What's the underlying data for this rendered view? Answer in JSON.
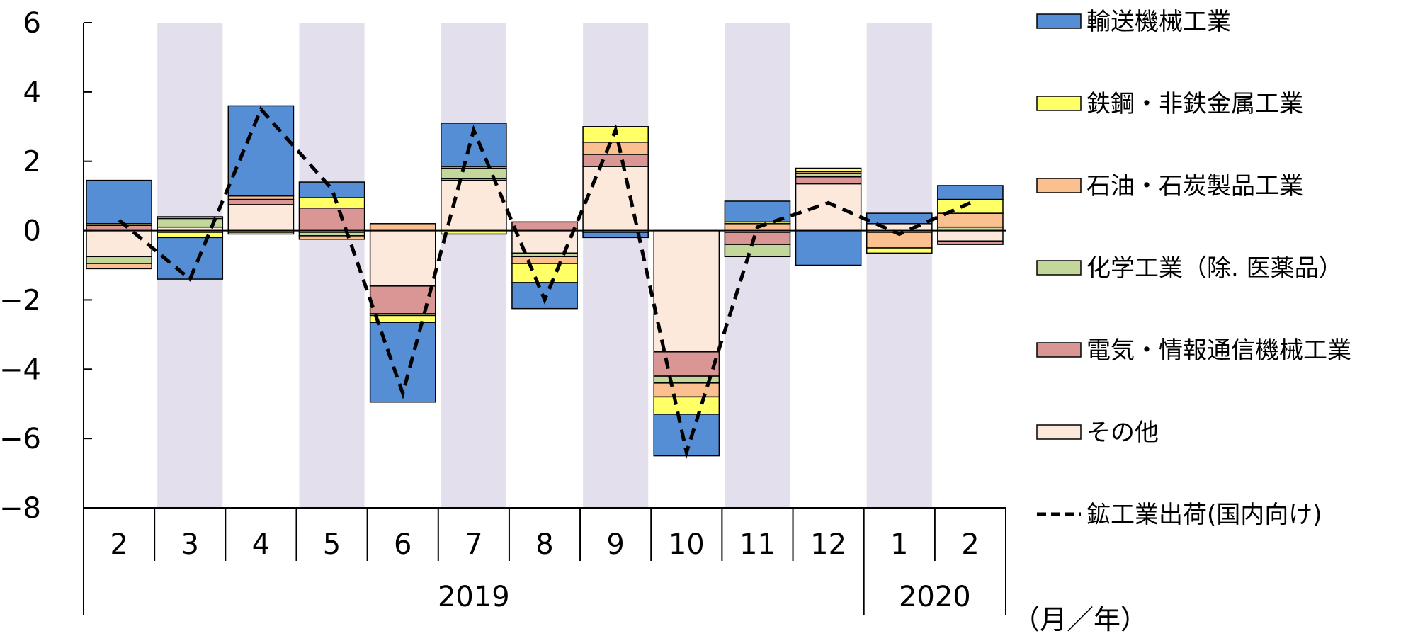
{
  "chart_data": {
    "type": "bar",
    "stacked": true,
    "categories": [
      "2",
      "3",
      "4",
      "5",
      "6",
      "7",
      "8",
      "9",
      "10",
      "11",
      "12",
      "1",
      "2"
    ],
    "years": [
      {
        "label": "2019",
        "from": 0,
        "to": 10
      },
      {
        "label": "2020",
        "from": 11,
        "to": 12
      }
    ],
    "shaded_categories": [
      1,
      3,
      5,
      7,
      9,
      11
    ],
    "ylim": [
      -8,
      6
    ],
    "yticks": [
      6,
      4,
      2,
      0,
      -2,
      -4,
      -6,
      -8
    ],
    "ytick_labels": [
      "6",
      "4",
      "2",
      "0",
      "−2",
      "−4",
      "−6",
      "−8"
    ],
    "unit_label": "（月／年）",
    "series": [
      {
        "name": "その他",
        "color": "#FDE9DC",
        "values": [
          -0.75,
          0.1,
          0.75,
          -0.05,
          -1.6,
          1.45,
          -0.65,
          1.85,
          -3.5,
          -0.05,
          1.35,
          0.2,
          -0.3
        ]
      },
      {
        "name": "電気・情報通信機械工業",
        "color": "#DA9694",
        "values": [
          0.15,
          -0.05,
          0.15,
          0.65,
          -0.8,
          0.05,
          0.25,
          0.35,
          -0.7,
          -0.35,
          0.2,
          0.0,
          -0.1
        ]
      },
      {
        "name": "化学工業（除. 医薬品）",
        "color": "#C4D79B",
        "values": [
          -0.2,
          0.25,
          -0.05,
          -0.1,
          -0.05,
          0.3,
          -0.1,
          -0.05,
          -0.2,
          -0.35,
          0.1,
          -0.05,
          0.1
        ]
      },
      {
        "name": "石油・石炭製品工業",
        "color": "#FAC090",
        "values": [
          -0.15,
          0.05,
          0.1,
          -0.1,
          0.2,
          0.05,
          -0.2,
          0.35,
          -0.4,
          0.2,
          0.05,
          -0.45,
          0.4
        ]
      },
      {
        "name": "鉄鋼・非鉄金属工業",
        "color": "#FFFF66",
        "values": [
          0.05,
          -0.15,
          -0.05,
          0.3,
          -0.2,
          -0.1,
          -0.55,
          0.45,
          -0.5,
          0.05,
          0.1,
          -0.15,
          0.4
        ]
      },
      {
        "name": "輸送機械工業",
        "color": "#558ED5",
        "values": [
          1.25,
          -1.2,
          2.6,
          0.45,
          -2.3,
          1.25,
          -0.75,
          -0.15,
          -1.2,
          0.6,
          -1.0,
          0.3,
          0.4
        ]
      }
    ],
    "line": {
      "name": "鉱工業出荷(国内向け)",
      "color": "#000000",
      "values": [
        0.3,
        -1.4,
        3.5,
        1.2,
        -4.7,
        2.9,
        -2.0,
        2.9,
        -6.4,
        0.1,
        0.8,
        -0.1,
        0.8
      ]
    },
    "legend_order": [
      "輸送機械工業",
      "鉄鋼・非鉄金属工業",
      "石油・石炭製品工業",
      "化学工業（除. 医薬品）",
      "電気・情報通信機械工業",
      "その他",
      "鉱工業出荷(国内向け)"
    ],
    "legend_position": "right",
    "grid": false
  }
}
